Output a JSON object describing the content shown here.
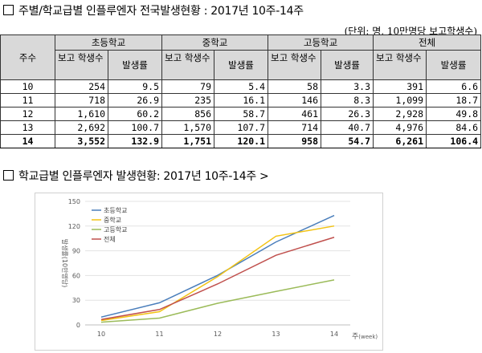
{
  "section1": {
    "title": "주별/학교급별 인플루엔자 전국발생현황 : 2017년 10주-14주"
  },
  "unit_note": "(단위: 명, 10만명당 보고학생수)",
  "table": {
    "week_header": "주수",
    "groups": [
      "초등학교",
      "중학교",
      "고등학교",
      "전체"
    ],
    "count_header": "보고 학생수",
    "rate_header": "발생률",
    "rows": [
      {
        "week": "10",
        "values": [
          "254",
          "9.5",
          "79",
          "5.4",
          "58",
          "3.3",
          "391",
          "6.6"
        ]
      },
      {
        "week": "11",
        "values": [
          "718",
          "26.9",
          "235",
          "16.1",
          "146",
          "8.3",
          "1,099",
          "18.7"
        ]
      },
      {
        "week": "12",
        "values": [
          "1,610",
          "60.2",
          "856",
          "58.7",
          "461",
          "26.3",
          "2,928",
          "49.8"
        ]
      },
      {
        "week": "13",
        "values": [
          "2,692",
          "100.7",
          "1,570",
          "107.7",
          "714",
          "40.7",
          "4,976",
          "84.6"
        ]
      },
      {
        "week": "14",
        "values": [
          "3,552",
          "132.9",
          "1,751",
          "120.1",
          "958",
          "54.7",
          "6,261",
          "106.4"
        ]
      }
    ]
  },
  "section2": {
    "title": "학교급별 인플루엔자 발생현황: 2017년 10주-14주 >"
  },
  "chart_data": {
    "type": "line",
    "categories": [
      "10",
      "11",
      "12",
      "13",
      "14"
    ],
    "series": [
      {
        "name": "초등학교",
        "values": [
          9.5,
          26.9,
          60.2,
          100.7,
          132.9
        ],
        "color": "#4a7ebb"
      },
      {
        "name": "중학교",
        "values": [
          5.4,
          16.1,
          58.7,
          107.7,
          120.1
        ],
        "color": "#f2c314"
      },
      {
        "name": "고등학교",
        "values": [
          3.3,
          8.3,
          26.3,
          40.7,
          54.7
        ],
        "color": "#9bbb59"
      },
      {
        "name": "전체",
        "values": [
          6.6,
          18.7,
          49.8,
          84.6,
          106.4
        ],
        "color": "#c0504d"
      }
    ],
    "ylabel": "발생률(10만명당)",
    "xlabel": "주(week)",
    "xlabel_main": "주",
    "xlabel_sub": "(week)",
    "ylim": [
      0,
      150
    ],
    "yticks": [
      0,
      30,
      60,
      90,
      120,
      150
    ],
    "grid": true,
    "legend_position": "top-left"
  }
}
